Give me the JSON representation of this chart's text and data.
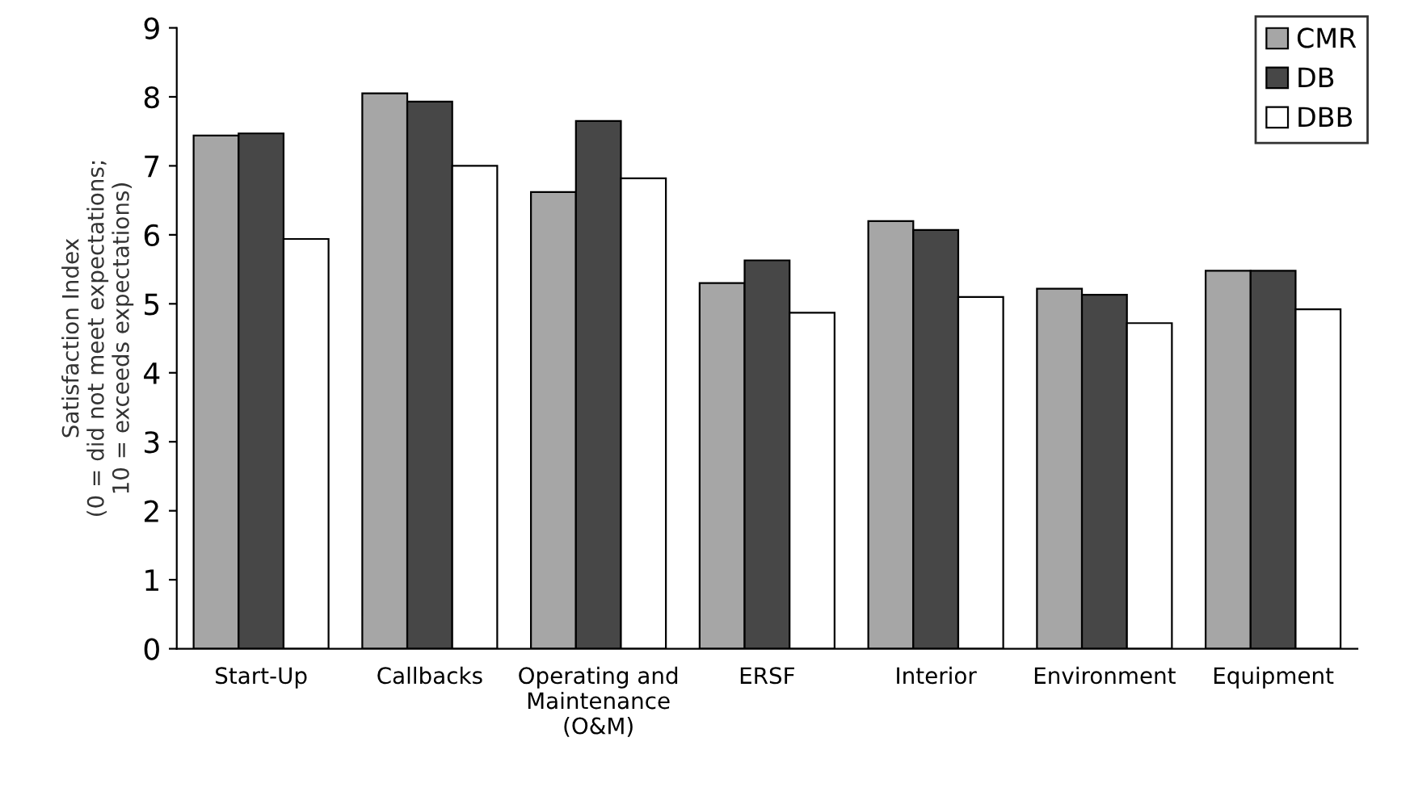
{
  "chart_data": {
    "type": "bar",
    "ylabel": "Satisfaction Index\n(0 = did not meet expectations;\n10 = exceeds expectations)",
    "categories": [
      "Start-Up",
      "Callbacks",
      "Operating and\nMaintenance\n(O&M)",
      "ERSF",
      "Interior",
      "Environment",
      "Equipment"
    ],
    "series": [
      {
        "name": "CMR",
        "color": "#a6a6a6",
        "values": [
          7.44,
          8.05,
          6.62,
          5.3,
          6.2,
          5.22,
          5.48
        ]
      },
      {
        "name": "DB",
        "color": "#474747",
        "values": [
          7.47,
          7.93,
          7.65,
          5.63,
          6.07,
          5.13,
          5.48
        ]
      },
      {
        "name": "DBB",
        "color": "#ffffff",
        "values": [
          5.94,
          7.0,
          6.82,
          4.87,
          5.1,
          4.72,
          4.92
        ]
      }
    ],
    "ylim": [
      0,
      9
    ],
    "yticks": [
      0,
      1,
      2,
      3,
      4,
      5,
      6,
      7,
      8,
      9
    ],
    "grid": false,
    "legend": "top right"
  }
}
